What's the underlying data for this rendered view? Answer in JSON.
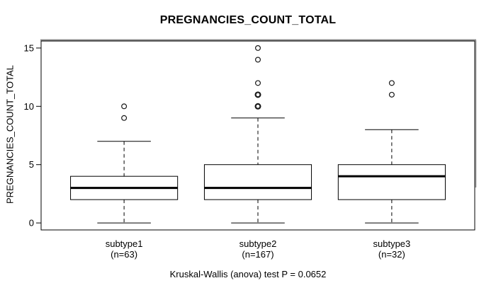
{
  "chart_data": {
    "type": "boxplot",
    "title": "PREGNANCIES_COUNT_TOTAL",
    "ylabel": "PREGNANCIES_COUNT_TOTAL",
    "xlabel": "",
    "caption": "Kruskal-Wallis (anova) test P = 0.0652",
    "ylim": [
      -0.6,
      15.6
    ],
    "yticks": [
      0,
      5,
      10,
      15
    ],
    "grid": false,
    "legend": "none",
    "groups": [
      {
        "label": "subtype1",
        "sublabel": "(n=63)",
        "n": 63,
        "whisker_low": 0,
        "q1": 2,
        "median": 3,
        "q3": 4,
        "whisker_high": 7,
        "outliers": [
          9,
          10
        ],
        "bold_outliers": []
      },
      {
        "label": "subtype2",
        "sublabel": "(n=167)",
        "n": 167,
        "whisker_low": 0,
        "q1": 2,
        "median": 3,
        "q3": 5,
        "whisker_high": 9,
        "outliers": [
          10,
          11,
          12,
          14,
          15
        ],
        "bold_outliers": [
          10,
          11
        ]
      },
      {
        "label": "subtype3",
        "sublabel": "(n=32)",
        "n": 32,
        "whisker_low": 0,
        "q1": 2,
        "median": 4,
        "q3": 5,
        "whisker_high": 8,
        "outliers": [
          11,
          12
        ],
        "bold_outliers": []
      }
    ]
  },
  "colors": {
    "background": "#ffffff",
    "frame_stroke": "#000000",
    "frame_shadow": "#8c8c8c",
    "box_stroke": "#000000",
    "box_fill": "#ffffff",
    "median_stroke": "#000000",
    "whisker_stroke": "#000000",
    "outlier_stroke": "#1a1a1a",
    "text": "#000000"
  }
}
